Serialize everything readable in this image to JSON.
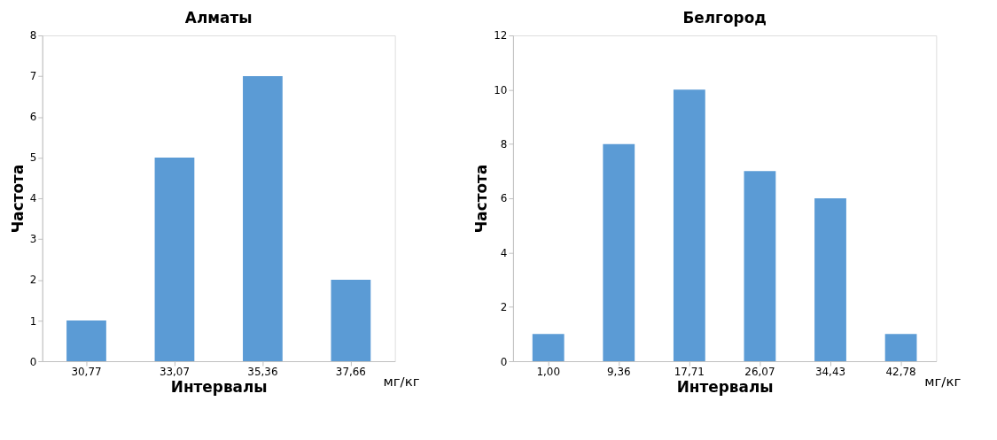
{
  "chart_data": [
    {
      "type": "bar",
      "title": "Алматы",
      "xlabel": "Интервалы",
      "ylabel": "Частота",
      "categories": [
        "30,77",
        "33,07",
        "35,36",
        "37,66"
      ],
      "values": [
        1,
        5,
        7,
        2
      ],
      "color": "#5b9bd5",
      "ylim": [
        0,
        8
      ],
      "yticks": [
        0,
        1,
        2,
        3,
        4,
        5,
        6,
        7,
        8
      ],
      "grid": false,
      "annotations": [
        "мг/кг"
      ]
    },
    {
      "type": "bar",
      "title": "Белгород",
      "xlabel": "Интервалы",
      "ylabel": "Частота",
      "categories": [
        "1,00",
        "9,36",
        "17,71",
        "26,07",
        "34,43",
        "42,78"
      ],
      "values": [
        1,
        8,
        10,
        7,
        6,
        1
      ],
      "color": "#5b9bd5",
      "ylim": [
        0,
        12
      ],
      "yticks": [
        0,
        2,
        4,
        6,
        8,
        10,
        12
      ],
      "grid": false,
      "annotations": [
        "мг/кг"
      ]
    }
  ]
}
